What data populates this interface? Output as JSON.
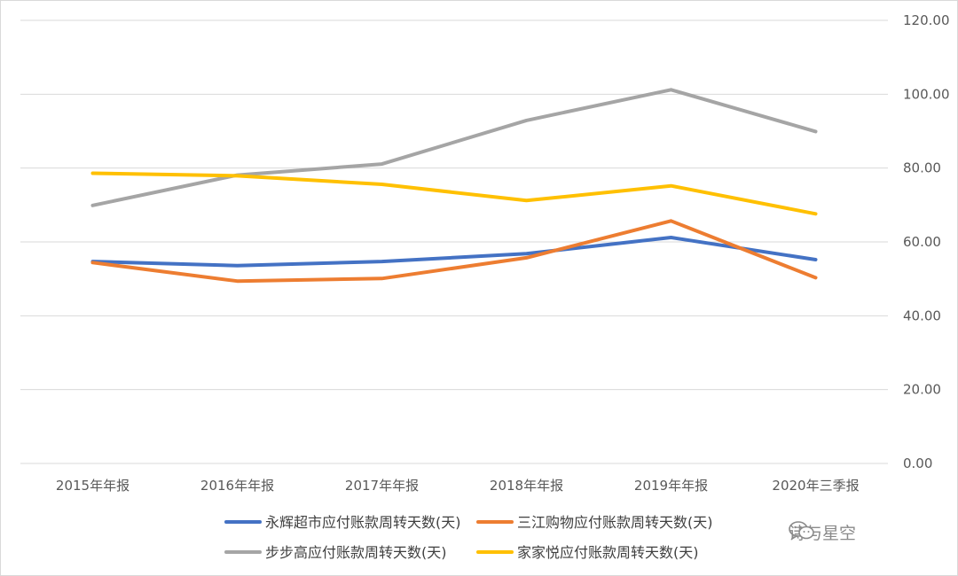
{
  "chart_data": {
    "type": "line",
    "categories": [
      "2015年年报",
      "2016年年报",
      "2017年年报",
      "2018年年报",
      "2019年年报",
      "2020年三季报"
    ],
    "y_ticks": [
      "0.00",
      "20.00",
      "40.00",
      "60.00",
      "80.00",
      "100.00",
      "120.00"
    ],
    "ylim": [
      0,
      120
    ],
    "y_axis_side": "right",
    "grid": true,
    "legend_position": "bottom",
    "series": [
      {
        "name": "永辉超市应付账款周转天数(天)",
        "color": "#4472C4",
        "values": [
          54.7,
          53.6,
          54.7,
          56.8,
          61.2,
          55.2
        ]
      },
      {
        "name": "三江购物应付账款周转天数(天)",
        "color": "#ED7D31",
        "values": [
          54.4,
          49.4,
          50.1,
          55.7,
          65.7,
          50.3
        ]
      },
      {
        "name": "步步高应付账款周转天数(天)",
        "color": "#A5A5A5",
        "values": [
          69.9,
          78.1,
          81.1,
          92.9,
          101.2,
          89.9
        ]
      },
      {
        "name": "家家悦应付账款周转天数(天)",
        "color": "#FFC000",
        "values": [
          78.6,
          77.9,
          75.6,
          71.2,
          75.2,
          67.6
        ]
      }
    ]
  },
  "watermark": {
    "text": "诗与星空",
    "icon": "wechat-icon"
  }
}
